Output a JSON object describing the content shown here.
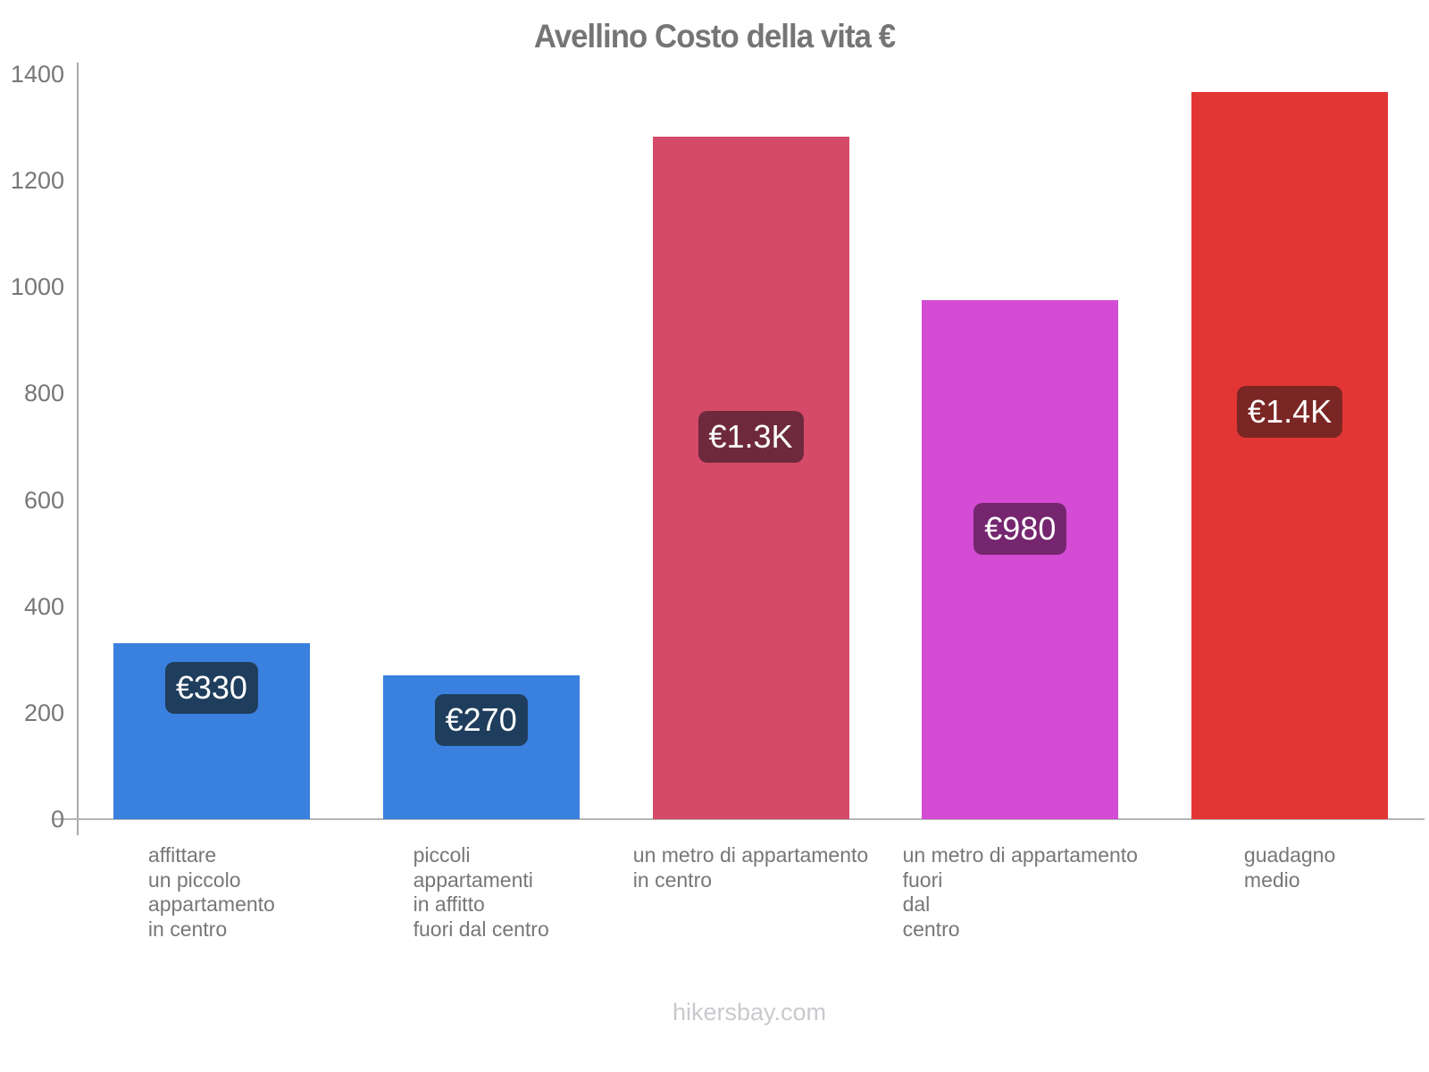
{
  "chart_data": {
    "type": "bar",
    "title": "Avellino Costo della vita €",
    "xlabel": "",
    "ylabel": "",
    "ylim": [
      0,
      1400
    ],
    "ytick_step": 200,
    "yticks": [
      "0",
      "200",
      "400",
      "600",
      "800",
      "1000",
      "1200",
      "1400"
    ],
    "grid": "off",
    "legend": "none",
    "categories": [
      "affittare un piccolo appartamento in centro",
      "piccoli appartamenti in affitto fuori dal centro",
      "un metro di appartamento in centro",
      "un metro di appartamento fuori dal centro",
      "guadagno medio"
    ],
    "values": [
      330,
      270,
      1283,
      975,
      1367
    ],
    "bars": [
      {
        "category_lines": [
          "affittare",
          "un piccolo",
          "appartamento",
          "in centro"
        ],
        "value": 330,
        "value_label": "€330",
        "bar_color": "#3a80de",
        "value_label_bg": "#1f3e5d"
      },
      {
        "category_lines": [
          "piccoli",
          "appartamenti",
          "in affitto",
          "fuori dal centro"
        ],
        "value": 270,
        "value_label": "€270",
        "bar_color": "#3a80de",
        "value_label_bg": "#1f3e5d"
      },
      {
        "category_lines": [
          "un metro di appartamento",
          "in centro"
        ],
        "value": 1283,
        "value_label": "€1.3K",
        "bar_color": "#d54a68",
        "value_label_bg": "#6e2a3c"
      },
      {
        "category_lines": [
          "un metro di appartamento",
          "fuori",
          "dal",
          "centro"
        ],
        "value": 975,
        "value_label": "€980",
        "bar_color": "#d34cd3",
        "value_label_bg": "#75266f"
      },
      {
        "category_lines": [
          "guadagno",
          "medio"
        ],
        "value": 1367,
        "value_label": "€1.4K",
        "bar_color": "#e23634",
        "value_label_bg": "#7a2624"
      }
    ],
    "colors": {
      "title": "#757575",
      "axis_line": "#aaaaaa",
      "baseline": "#b5b5b5",
      "tick_label": "#777777",
      "category_label": "#777777",
      "footer": "#c9c9ce"
    },
    "footer": {
      "text": "hikersbay.com"
    }
  }
}
